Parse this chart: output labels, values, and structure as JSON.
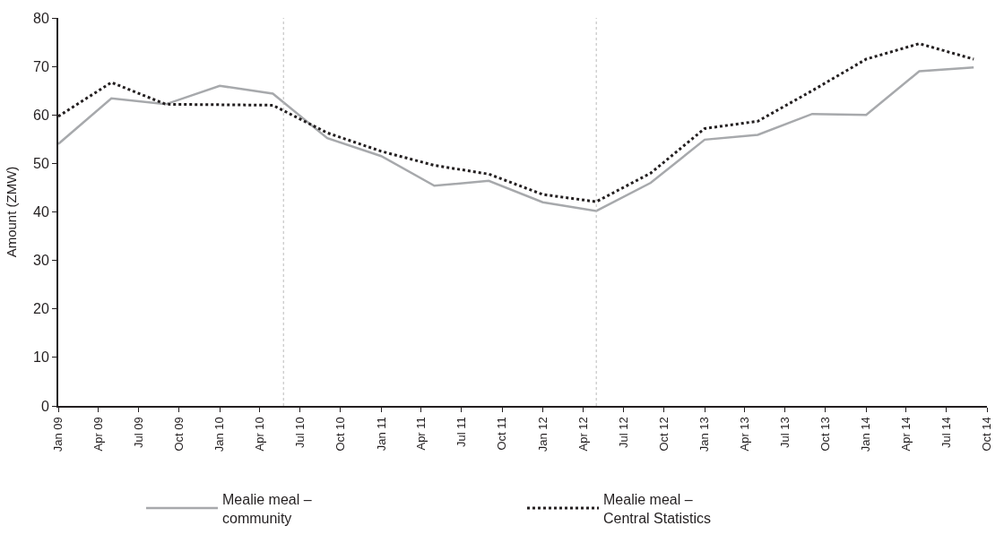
{
  "chart_data": {
    "type": "line",
    "ylabel": "Amount (ZMW)",
    "x": [
      "2009-01",
      "2009-05",
      "2009-09",
      "2010-01",
      "2010-05",
      "2010-09",
      "2011-01",
      "2011-05",
      "2011-09",
      "2012-01",
      "2012-05",
      "2012-09",
      "2013-01",
      "2013-05",
      "2013-09",
      "2014-01",
      "2014-05",
      "2014-09"
    ],
    "series": [
      {
        "name": "Mealie meal – community",
        "color": "#a7a9ac",
        "line_style": "solid",
        "values": [
          54.0,
          63.4,
          62.2,
          66.0,
          64.4,
          55.2,
          51.5,
          45.4,
          46.4,
          42.0,
          40.2,
          46.0,
          54.9,
          55.9,
          60.2,
          60.0,
          69.0,
          69.8
        ]
      },
      {
        "name": "Mealie meal – Central Statistics",
        "color": "#231f20",
        "line_style": "dotted",
        "values": [
          59.7,
          66.7,
          62.2,
          62.1,
          62.0,
          56.3,
          52.5,
          49.6,
          47.8,
          43.6,
          42.1,
          48.0,
          57.2,
          58.7,
          65.0,
          71.5,
          74.7,
          71.5
        ]
      }
    ],
    "xlim": [
      "2009-01",
      "2014-10"
    ],
    "xticks": [
      {
        "value": "2009-01",
        "label": "Jan 09"
      },
      {
        "value": "2009-04",
        "label": "Apr 09"
      },
      {
        "value": "2009-07",
        "label": "Jul 09"
      },
      {
        "value": "2009-10",
        "label": "Oct 09"
      },
      {
        "value": "2010-01",
        "label": "Jan 10"
      },
      {
        "value": "2010-04",
        "label": "Apr 10"
      },
      {
        "value": "2010-07",
        "label": "Jul 10"
      },
      {
        "value": "2010-10",
        "label": "Oct 10"
      },
      {
        "value": "2011-01",
        "label": "Jan 11"
      },
      {
        "value": "2011-04",
        "label": "Apr 11"
      },
      {
        "value": "2011-07",
        "label": "Jul 11"
      },
      {
        "value": "2011-10",
        "label": "Oct 11"
      },
      {
        "value": "2012-01",
        "label": "Jan 12"
      },
      {
        "value": "2012-04",
        "label": "Apr 12"
      },
      {
        "value": "2012-07",
        "label": "Jul 12"
      },
      {
        "value": "2012-10",
        "label": "Oct 12"
      },
      {
        "value": "2013-01",
        "label": "Jan 13"
      },
      {
        "value": "2013-04",
        "label": "Apr 13"
      },
      {
        "value": "2013-07",
        "label": "Jul 13"
      },
      {
        "value": "2013-10",
        "label": "Oct 13"
      },
      {
        "value": "2014-01",
        "label": "Jan 14"
      },
      {
        "value": "2014-04",
        "label": "Apr 14"
      },
      {
        "value": "2014-07",
        "label": "Jul 14"
      },
      {
        "value": "2014-10",
        "label": "Oct 14"
      }
    ],
    "ylim": [
      0,
      80
    ],
    "yticks": [
      0,
      10,
      20,
      30,
      40,
      50,
      60,
      70,
      80
    ],
    "ref_lines": [
      {
        "axis": "x",
        "value": "2010-05-25",
        "color": "#bbbbbb",
        "line_style": "dotted"
      },
      {
        "axis": "x",
        "value": "2012-05-01",
        "color": "#bbbbbb",
        "line_style": "dotted"
      }
    ],
    "grid": false,
    "legend": "bottom",
    "marker": "none"
  }
}
